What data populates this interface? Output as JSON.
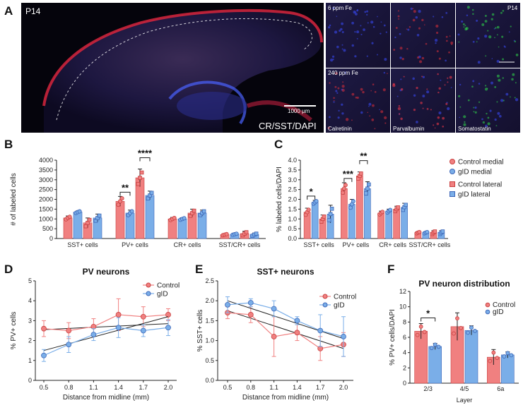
{
  "panels": {
    "A": {
      "label": "A",
      "age": "P14",
      "stain": "CR/SST/DAPI",
      "scalebar": "1000 µm",
      "grid_row_labels": [
        "6 ppm Fe",
        "240 ppm Fe"
      ],
      "grid_col_labels": [
        "Calretinin",
        "Parvalbumin",
        "Somatostatin"
      ],
      "grid_age": "P14"
    },
    "B": {
      "label": "B"
    },
    "C": {
      "label": "C"
    },
    "D": {
      "label": "D"
    },
    "E": {
      "label": "E"
    },
    "F": {
      "label": "F"
    }
  },
  "colors": {
    "control": "#f08080",
    "gid": "#7aaee8",
    "control_dark": "#c94040",
    "gid_dark": "#3d66b8"
  },
  "chart_data": [
    {
      "id": "B",
      "type": "bar",
      "ylabel": "# of labeled cells",
      "ylim": [
        0,
        4000
      ],
      "yticks": [
        0,
        500,
        1000,
        1500,
        2000,
        2500,
        3000,
        3500,
        4000
      ],
      "categories": [
        "SST+ cells",
        "PV+ cells",
        "CR+ cells",
        "SST/CR+ cells"
      ],
      "series": [
        {
          "group": "control-medial",
          "values": [
            1050,
            1900,
            1000,
            200
          ],
          "err": [
            100,
            250,
            80,
            40
          ]
        },
        {
          "group": "gid-medial",
          "values": [
            1350,
            1300,
            1000,
            220
          ],
          "err": [
            60,
            150,
            60,
            40
          ]
        },
        {
          "group": "control-lateral",
          "values": [
            800,
            3100,
            1300,
            250
          ],
          "err": [
            250,
            450,
            200,
            120
          ]
        },
        {
          "group": "gid-lateral",
          "values": [
            1050,
            2200,
            1300,
            200
          ],
          "err": [
            200,
            220,
            150,
            80
          ]
        }
      ],
      "significance": [
        {
          "category": "PV+ cells",
          "pair": "medial",
          "text": "**"
        },
        {
          "category": "PV+ cells",
          "pair": "lateral",
          "text": "****"
        }
      ]
    },
    {
      "id": "C",
      "type": "bar",
      "ylabel": "% labeled cells/DAPI",
      "ylim": [
        0,
        4.0
      ],
      "yticks": [
        "0.0",
        "0.5",
        "1.0",
        "1.5",
        "2.0",
        "2.5",
        "3.0",
        "3.5",
        "4.0"
      ],
      "categories": [
        "SST+ cells",
        "PV+ cells",
        "CR+ cells",
        "SST/CR+ cells"
      ],
      "series": [
        {
          "name": "Control medial",
          "values": [
            1.35,
            2.55,
            1.3,
            0.3
          ],
          "err": [
            0.2,
            0.3,
            0.1,
            0.05
          ]
        },
        {
          "name": "gID medial",
          "values": [
            1.85,
            1.75,
            1.4,
            0.3
          ],
          "err": [
            0.1,
            0.25,
            0.1,
            0.05
          ]
        },
        {
          "name": "Control lateral",
          "values": [
            1.0,
            3.2,
            1.5,
            0.3
          ],
          "err": [
            0.2,
            0.2,
            0.15,
            0.1
          ]
        },
        {
          "name": "gID lateral",
          "values": [
            1.25,
            2.55,
            1.6,
            0.3
          ],
          "err": [
            0.45,
            0.35,
            0.2,
            0.1
          ]
        }
      ],
      "significance": [
        {
          "category": "SST+ cells",
          "pair": "medial",
          "text": "*"
        },
        {
          "category": "PV+ cells",
          "pair": "medial",
          "text": "***"
        },
        {
          "category": "PV+ cells",
          "pair": "lateral",
          "text": "**"
        }
      ],
      "legend_placement": "right"
    },
    {
      "id": "D",
      "type": "line",
      "title": "PV neurons",
      "xlabel": "Distance from midline (mm)",
      "ylabel": "% PV+ cells",
      "x": [
        0.5,
        0.8,
        1.1,
        1.4,
        1.7,
        2.0
      ],
      "xticks": [
        "0.5",
        "0.8",
        "1.1",
        "1.4",
        "1.7",
        "2.0"
      ],
      "ylim": [
        0,
        5
      ],
      "yticks": [
        "0",
        "1",
        "2",
        "3",
        "4",
        "5"
      ],
      "series": [
        {
          "name": "Control",
          "values": [
            2.6,
            2.5,
            2.7,
            3.3,
            3.2,
            3.3
          ],
          "err": [
            0.4,
            0.4,
            0.4,
            0.8,
            0.5,
            0.3
          ],
          "fit": [
            2.55,
            2.85
          ]
        },
        {
          "name": "gID",
          "values": [
            1.25,
            1.8,
            2.3,
            2.65,
            2.5,
            2.65
          ],
          "err": [
            0.3,
            0.4,
            0.3,
            0.5,
            0.3,
            0.4
          ],
          "fit": [
            1.5,
            3.2
          ]
        }
      ]
    },
    {
      "id": "E",
      "type": "line",
      "title": "SST+ neurons",
      "xlabel": "Distance from midline (mm)",
      "ylabel": "% SST+ cells",
      "x": [
        0.5,
        0.8,
        1.1,
        1.4,
        1.7,
        2.0
      ],
      "xticks": [
        "0.5",
        "0.8",
        "1.1",
        "1.4",
        "1.7",
        "2.0"
      ],
      "ylim": [
        0,
        2.5
      ],
      "yticks": [
        "0.0",
        "0.5",
        "1.0",
        "1.5",
        "2.0",
        "2.5"
      ],
      "series": [
        {
          "name": "Control",
          "values": [
            1.7,
            1.65,
            1.1,
            1.2,
            0.8,
            0.9
          ],
          "err": [
            0.15,
            0.2,
            0.5,
            0.2,
            0.3,
            0.3
          ],
          "fit": [
            1.75,
            0.8
          ]
        },
        {
          "name": "gID",
          "values": [
            1.9,
            1.95,
            1.8,
            1.5,
            1.25,
            1.1
          ],
          "err": [
            0.2,
            0.1,
            0.2,
            0.1,
            0.4,
            0.5
          ],
          "fit": [
            2.0,
            1.05
          ]
        }
      ]
    },
    {
      "id": "F",
      "type": "bar",
      "title": "PV neuron distribution",
      "xlabel": "Layer",
      "ylabel": "% PV+ cells/DAPI",
      "ylim": [
        0,
        12
      ],
      "yticks": [
        "0",
        "2",
        "4",
        "6",
        "8",
        "10",
        "12"
      ],
      "categories": [
        "2/3",
        "4/5",
        "6a"
      ],
      "series": [
        {
          "name": "Control",
          "values": [
            6.8,
            7.4,
            3.4
          ],
          "err": [
            1.0,
            1.8,
            1.0
          ]
        },
        {
          "name": "gID",
          "values": [
            4.8,
            6.9,
            3.7
          ],
          "err": [
            0.4,
            0.6,
            0.4
          ]
        }
      ],
      "significance": [
        {
          "category": "2/3",
          "text": "*"
        }
      ]
    }
  ]
}
